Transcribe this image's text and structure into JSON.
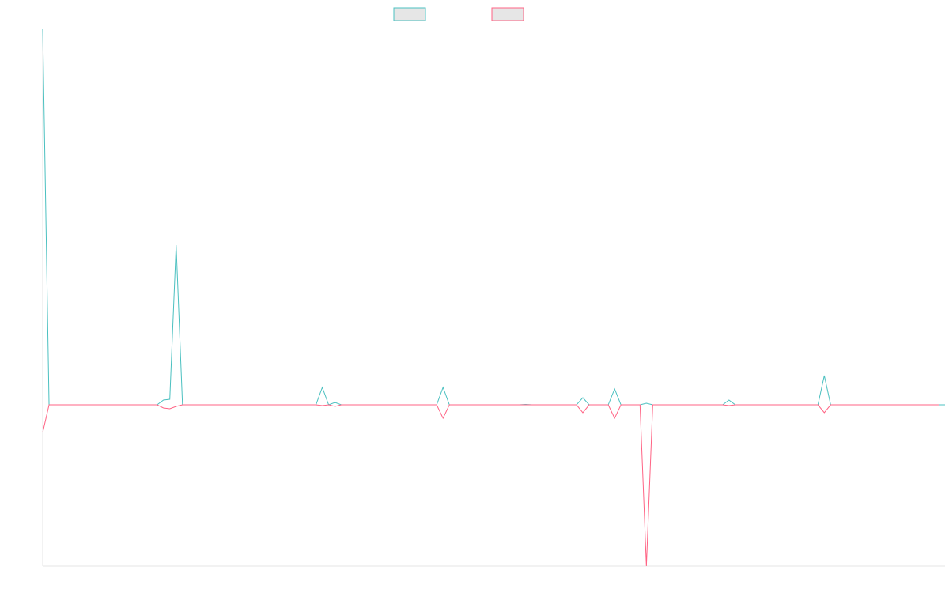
{
  "chart_data": {
    "type": "line",
    "title": "",
    "xlabel": "",
    "ylabel": "",
    "grid": false,
    "legend_position": "top-center",
    "ylim": [
      -204,
      475
    ],
    "x_count": 143,
    "series": [
      {
        "color": "#4BC0C0",
        "legend_fill": "#e6e6e6",
        "values": [
          475,
          0,
          0,
          0,
          0,
          0,
          0,
          0,
          0,
          0,
          0,
          0,
          0,
          0,
          0,
          0,
          0,
          0,
          0,
          6,
          7,
          202,
          0,
          0,
          0,
          0,
          0,
          0,
          0,
          0,
          0,
          0,
          0,
          0,
          0,
          0,
          0,
          0,
          0,
          0,
          0,
          0,
          0,
          0,
          0,
          0,
          0,
          0,
          0,
          0,
          0,
          0,
          0,
          0,
          0,
          0,
          0,
          0,
          0,
          0,
          0,
          0,
          0,
          0,
          0,
          0,
          0,
          0,
          0,
          0,
          0,
          0,
          0,
          0,
          0,
          0,
          0,
          0,
          0,
          0,
          0,
          0,
          0,
          0,
          0,
          0,
          0,
          0,
          0,
          0,
          0,
          0,
          0,
          0,
          0,
          0,
          0,
          0,
          0,
          0,
          0,
          0,
          0,
          0,
          0,
          0,
          0,
          0,
          0,
          0,
          0,
          0,
          0,
          0,
          0,
          0,
          0,
          0,
          0,
          0,
          0,
          0,
          0,
          0,
          0,
          0,
          0,
          0,
          0,
          0,
          0,
          0,
          0,
          0,
          0,
          0,
          0,
          0,
          0,
          0,
          0,
          0,
          0
        ]
      },
      {
        "color": "#FF6384",
        "legend_fill": "#e6e6e6",
        "values": [
          -35,
          0,
          0,
          0,
          0,
          0,
          0,
          0,
          0,
          0,
          0,
          0,
          0,
          0,
          0,
          0,
          0,
          0,
          0,
          -4,
          -5,
          -2,
          0,
          0,
          0,
          0,
          0,
          0,
          0,
          0,
          0,
          0,
          0,
          0,
          0,
          0,
          0,
          0,
          0,
          0,
          0,
          0,
          0,
          0,
          0,
          0,
          0,
          0,
          0,
          0,
          0,
          0,
          0,
          0,
          0,
          0,
          0,
          0,
          0,
          0,
          0,
          0,
          0,
          0,
          0,
          0,
          0,
          0,
          0,
          0,
          0,
          0,
          0,
          0,
          0,
          0,
          0,
          0,
          0,
          0,
          0,
          0,
          0,
          0,
          0,
          0,
          0,
          0,
          0,
          0,
          0,
          0,
          0,
          0,
          0,
          0,
          0,
          0,
          0,
          0,
          0,
          0,
          0,
          0,
          0,
          0,
          0,
          0,
          0,
          0,
          0,
          0,
          0,
          0,
          0,
          0,
          0,
          0,
          0,
          0,
          0,
          0,
          0,
          0,
          0,
          0,
          0,
          0,
          0,
          0,
          0,
          0,
          0,
          0,
          0,
          0,
          0,
          0,
          0,
          0,
          0,
          0
        ]
      }
    ],
    "spikes": [
      {
        "series": 0,
        "index": 44,
        "value": 22
      },
      {
        "series": 1,
        "index": 44,
        "value": -1
      },
      {
        "series": 0,
        "index": 46,
        "value": 3
      },
      {
        "series": 1,
        "index": 46,
        "value": -2
      },
      {
        "series": 0,
        "index": 63,
        "value": 22
      },
      {
        "series": 1,
        "index": 63,
        "value": -17
      },
      {
        "series": 0,
        "index": 76,
        "value": 0.5
      },
      {
        "series": 0,
        "index": 85,
        "value": 9
      },
      {
        "series": 1,
        "index": 85,
        "value": -10
      },
      {
        "series": 0,
        "index": 90,
        "value": 20
      },
      {
        "series": 1,
        "index": 90,
        "value": -17
      },
      {
        "series": 1,
        "index": 95,
        "value": -204
      },
      {
        "series": 0,
        "index": 95,
        "value": 2
      },
      {
        "series": 0,
        "index": 108,
        "value": 6
      },
      {
        "series": 1,
        "index": 108,
        "value": -1
      },
      {
        "series": 0,
        "index": 123,
        "value": 37
      },
      {
        "series": 1,
        "index": 123,
        "value": -10
      }
    ]
  }
}
